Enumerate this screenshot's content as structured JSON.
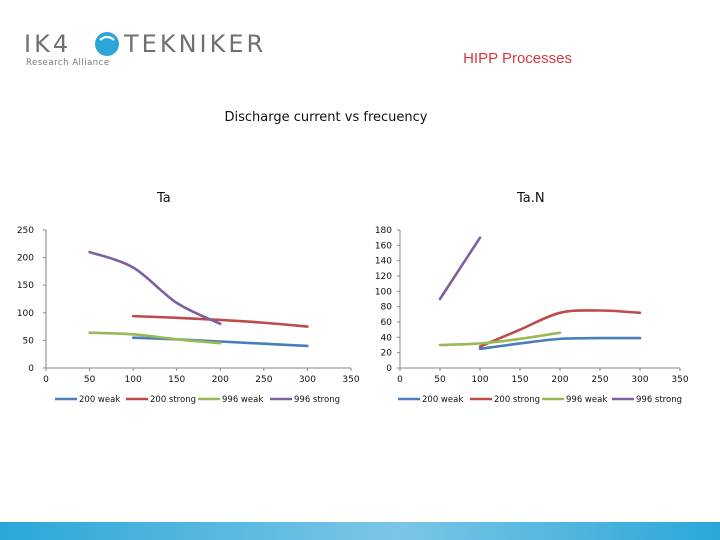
{
  "header": {
    "logo_text": "IK4",
    "logo_text2": "TEKNIKER",
    "logo_sub": "Research Alliance",
    "title": "HIPP Processes"
  },
  "slide": {
    "title": "Discharge current vs frecuency"
  },
  "colors": {
    "accent": "#d9363e",
    "bar": "#2aa7d8",
    "logo_circle": "#2aa7d8"
  },
  "chart_data": [
    {
      "type": "line",
      "title": "Ta",
      "xlim": [
        0,
        350
      ],
      "ylim": [
        0,
        250
      ],
      "x_ticks": [
        0,
        50,
        100,
        150,
        200,
        250,
        300,
        350
      ],
      "y_ticks": [
        0,
        50,
        100,
        150,
        200,
        250
      ],
      "legend": "bottom",
      "grid": false,
      "series": [
        {
          "name": "200 weak",
          "color": "#4a7ebb",
          "x": [
            100,
            150,
            200,
            250,
            300
          ],
          "y": [
            55,
            52,
            48,
            44,
            40
          ]
        },
        {
          "name": "200 strong",
          "color": "#be4b48",
          "x": [
            100,
            150,
            200,
            250,
            300
          ],
          "y": [
            94,
            91,
            87,
            82,
            75
          ]
        },
        {
          "name": "996 weak",
          "color": "#98b954",
          "x": [
            50,
            100,
            150,
            200
          ],
          "y": [
            64,
            61,
            52,
            45
          ]
        },
        {
          "name": "996 strong",
          "color": "#7d60a0",
          "x": [
            50,
            100,
            150,
            200
          ],
          "y": [
            210,
            182,
            118,
            80
          ]
        }
      ]
    },
    {
      "type": "line",
      "title": "Ta.N",
      "xlim": [
        0,
        350
      ],
      "ylim": [
        0,
        180
      ],
      "x_ticks": [
        0,
        50,
        100,
        150,
        200,
        250,
        300,
        350
      ],
      "y_ticks": [
        0,
        20,
        40,
        60,
        80,
        100,
        120,
        140,
        160,
        180
      ],
      "legend": "bottom",
      "grid": false,
      "series": [
        {
          "name": "200 weak",
          "color": "#4a7ebb",
          "x": [
            100,
            150,
            200,
            250,
            300
          ],
          "y": [
            25,
            32,
            38,
            39,
            39
          ]
        },
        {
          "name": "200 strong",
          "color": "#be4b48",
          "x": [
            100,
            150,
            200,
            250,
            300
          ],
          "y": [
            28,
            50,
            72,
            75,
            72
          ]
        },
        {
          "name": "996 weak",
          "color": "#98b954",
          "x": [
            50,
            100,
            150,
            200
          ],
          "y": [
            30,
            32,
            38,
            46
          ]
        },
        {
          "name": "996 strong",
          "color": "#7d60a0",
          "x": [
            50,
            100
          ],
          "y": [
            90,
            170
          ]
        }
      ]
    }
  ]
}
